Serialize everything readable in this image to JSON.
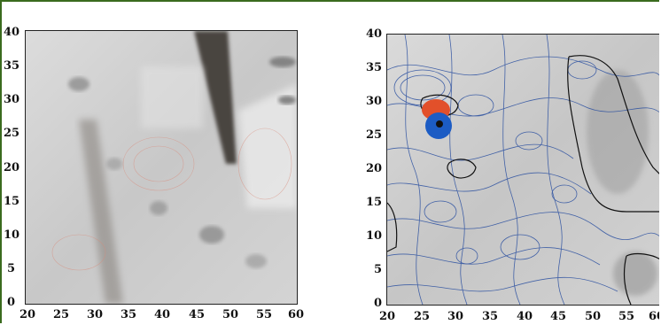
{
  "figure": {
    "left_panel": {
      "x_ticks": [
        "20",
        "25",
        "30",
        "35",
        "40",
        "45",
        "50",
        "55",
        "60"
      ],
      "y_ticks": [
        "0",
        "5",
        "10",
        "15",
        "20",
        "25",
        "30",
        "35",
        "40"
      ],
      "y_ticks_visible_text": [
        "0",
        "5",
        "10",
        "15",
        "20",
        "25",
        "30",
        "35",
        "40"
      ]
    },
    "right_panel": {
      "x_ticks": [
        "20",
        "25",
        "30",
        "35",
        "40",
        "45",
        "50",
        "55",
        "60"
      ],
      "y_ticks": [
        "0",
        "5",
        "10",
        "15",
        "20",
        "25",
        "30",
        "35",
        "40"
      ]
    },
    "colors": {
      "frame": "#3a6b1e",
      "contour_blue": "#2a4fa0",
      "contour_black": "#111111",
      "hotspot_red": "#e2502a",
      "hotspot_blue": "#1c5cc4",
      "contour_red_faint": "#d98a7a"
    }
  }
}
